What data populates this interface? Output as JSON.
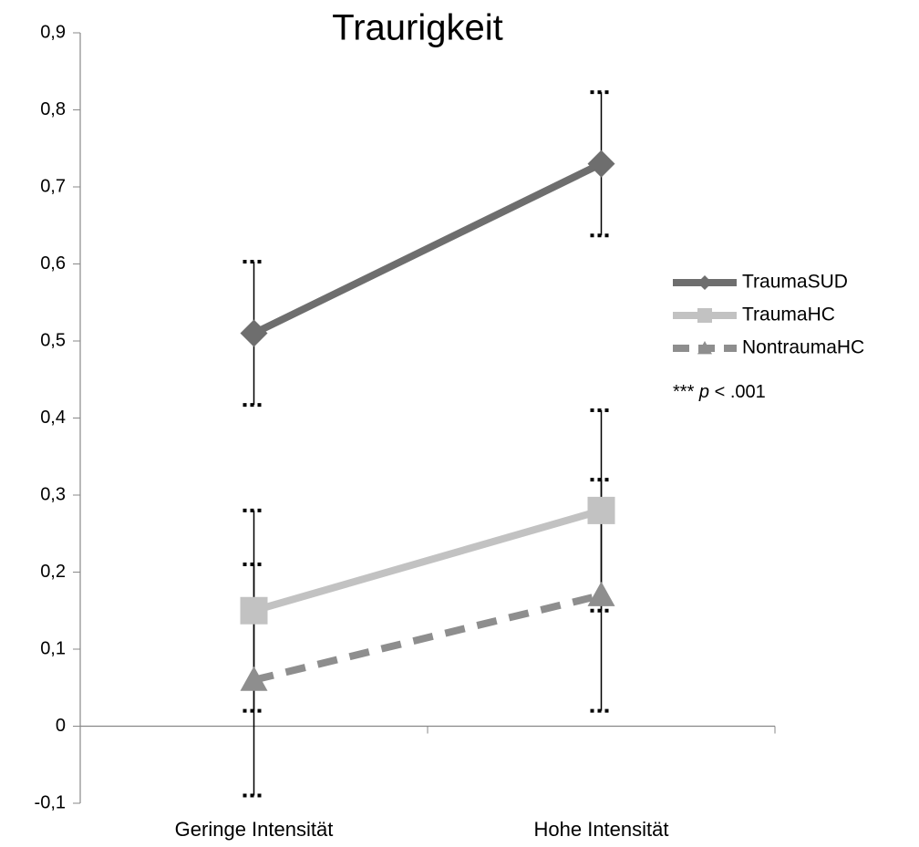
{
  "chart_data": {
    "type": "line",
    "title": "Traurigkeit",
    "categories": [
      "Geringe Intensität",
      "Hohe Intensität"
    ],
    "series": [
      {
        "name": "TraumaSUD",
        "color": "#6e6e6e",
        "marker": "diamond",
        "dashed": false,
        "values": [
          0.51,
          0.73
        ],
        "errors": [
          0.093,
          0.093
        ]
      },
      {
        "name": "TraumaHC",
        "color": "#c2c2c2",
        "marker": "square",
        "dashed": false,
        "values": [
          0.15,
          0.28
        ],
        "errors": [
          0.13,
          0.13
        ]
      },
      {
        "name": "NontraumaHC",
        "color": "#8e8e8e",
        "marker": "triangle",
        "dashed": true,
        "values": [
          0.06,
          0.17
        ],
        "errors": [
          0.15,
          0.15
        ]
      }
    ],
    "ylim": [
      -0.1,
      0.9
    ],
    "yticks": [
      {
        "value": -0.1,
        "label": "-0,1"
      },
      0,
      {
        "value": 0.1,
        "label": "0,1"
      },
      {
        "value": 0.2,
        "label": "0,2"
      },
      {
        "value": 0.3,
        "label": "0,3"
      },
      {
        "value": 0.4,
        "label": "0,4"
      },
      {
        "value": 0.5,
        "label": "0,5"
      },
      {
        "value": 0.6,
        "label": "0,6"
      },
      {
        "value": 0.7,
        "label": "0,7"
      },
      {
        "value": 0.8,
        "label": "0,8"
      },
      {
        "value": 0.9,
        "label": "0,9"
      }
    ],
    "annotation": {
      "stars": "***",
      "italic": "p",
      "rest": "< .001"
    },
    "grid": false,
    "legend": "right"
  }
}
